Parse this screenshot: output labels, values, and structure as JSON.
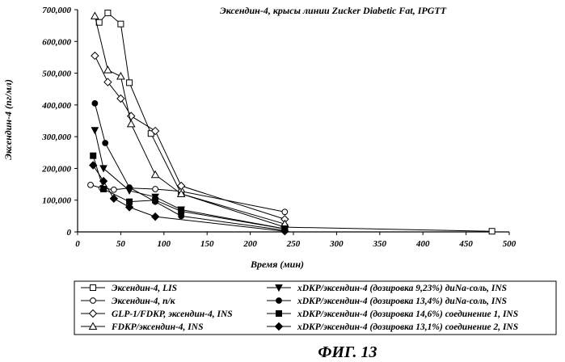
{
  "chart_data": {
    "type": "line",
    "title": "Эксендин-4, крысы линии Zucker Diabetic Fat, IPGTT",
    "xlabel": "Время (мин)",
    "ylabel": "Эксендин-4 (пг/мл)",
    "xlim": [
      0,
      500
    ],
    "ylim": [
      0,
      700000
    ],
    "xticks": [
      "0",
      "50",
      "100",
      "150",
      "200",
      "250",
      "300",
      "350",
      "400",
      "450",
      "500"
    ],
    "yticks": [
      "0",
      "100,000",
      "200,000",
      "300,000",
      "400,000",
      "500,000",
      "600,000",
      "700,000"
    ],
    "grid": false,
    "legend_position": "bottom",
    "series": [
      {
        "name": "Эксендин-4, LIS",
        "marker": "square-open",
        "points": [
          [
            25,
            660000
          ],
          [
            35,
            690000
          ],
          [
            50,
            655000
          ],
          [
            60,
            470000
          ],
          [
            85,
            310000
          ],
          [
            120,
            120000
          ],
          [
            240,
            15000
          ],
          [
            480,
            2000
          ]
        ]
      },
      {
        "name": "Эксендин-4, п/к",
        "marker": "circle-open",
        "points": [
          [
            15,
            148000
          ],
          [
            28,
            138000
          ],
          [
            42,
            133000
          ],
          [
            60,
            138000
          ],
          [
            90,
            135000
          ],
          [
            120,
            128000
          ],
          [
            240,
            63000
          ]
        ]
      },
      {
        "name": "GLP-1/FDKP, эксендин-4, INS",
        "marker": "diamond-open",
        "points": [
          [
            20,
            555000
          ],
          [
            35,
            472000
          ],
          [
            50,
            420000
          ],
          [
            62,
            365000
          ],
          [
            90,
            318000
          ],
          [
            120,
            145000
          ],
          [
            240,
            40000
          ]
        ]
      },
      {
        "name": "FDKP/эксендин-4, INS",
        "marker": "triangle-open",
        "points": [
          [
            20,
            680000
          ],
          [
            35,
            510000
          ],
          [
            50,
            490000
          ],
          [
            62,
            340000
          ],
          [
            90,
            180000
          ],
          [
            120,
            120000
          ],
          [
            240,
            25000
          ]
        ]
      },
      {
        "name": "xDKP/эксендин-4 (дозировка 9,23%) диNa-соль, INS",
        "marker": "triangle-down-filled",
        "points": [
          [
            20,
            320000
          ],
          [
            30,
            200000
          ],
          [
            60,
            130000
          ],
          [
            90,
            110000
          ],
          [
            120,
            70000
          ],
          [
            240,
            10000
          ]
        ]
      },
      {
        "name": "xDKP/эксендин-4 (дозировка 13,4%) диNa-соль, INS",
        "marker": "circle-filled",
        "points": [
          [
            20,
            405000
          ],
          [
            32,
            280000
          ],
          [
            60,
            140000
          ],
          [
            90,
            95000
          ],
          [
            120,
            50000
          ],
          [
            240,
            5000
          ]
        ]
      },
      {
        "name": "xDKP/эксендин-4 (дозировка 14,6%) соединение 1, INS",
        "marker": "square-filled",
        "points": [
          [
            18,
            240000
          ],
          [
            30,
            135000
          ],
          [
            60,
            95000
          ],
          [
            90,
            100000
          ],
          [
            120,
            65000
          ],
          [
            240,
            10000
          ]
        ]
      },
      {
        "name": "xDKP/эксендин-4 (дозировка 13,1%) соединение 2, INS",
        "marker": "diamond-filled",
        "points": [
          [
            18,
            210000
          ],
          [
            30,
            160000
          ],
          [
            42,
            105000
          ],
          [
            60,
            78000
          ],
          [
            90,
            48000
          ],
          [
            240,
            2000
          ]
        ]
      }
    ]
  },
  "caption": "ФИГ. 13"
}
